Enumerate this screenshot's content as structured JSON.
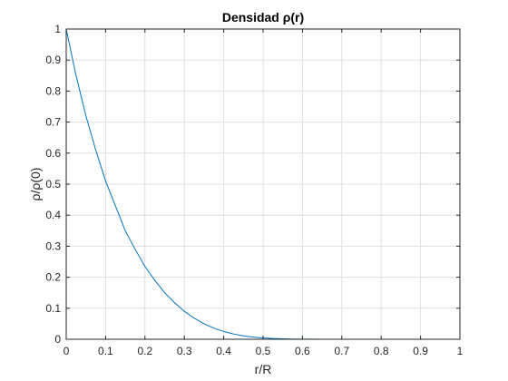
{
  "chart_data": {
    "type": "line",
    "title": "Densidad ρ(r)",
    "xlabel": "r/R",
    "ylabel": "ρ/ρ(0)",
    "xlim": [
      0,
      1
    ],
    "ylim": [
      0,
      1
    ],
    "grid": true,
    "x_ticks": [
      0,
      0.1,
      0.2,
      0.3,
      0.4,
      0.5,
      0.6,
      0.7,
      0.8,
      0.9,
      1
    ],
    "x_tick_labels": [
      "0",
      "0.1",
      "0.2",
      "0.3",
      "0.4",
      "0.5",
      "0.6",
      "0.7",
      "0.8",
      "0.9",
      "1"
    ],
    "y_ticks": [
      0,
      0.1,
      0.2,
      0.3,
      0.4,
      0.5,
      0.6,
      0.7,
      0.8,
      0.9,
      1
    ],
    "y_tick_labels": [
      "0",
      "0.1",
      "0.2",
      "0.3",
      "0.4",
      "0.5",
      "0.6",
      "0.7",
      "0.8",
      "0.9",
      "1"
    ],
    "series": [
      {
        "color": "#0072BD",
        "x": [
          0,
          0.025,
          0.05,
          0.075,
          0.1,
          0.125,
          0.15,
          0.175,
          0.2,
          0.225,
          0.25,
          0.275,
          0.3,
          0.325,
          0.35,
          0.375,
          0.4,
          0.425,
          0.45,
          0.475,
          0.5,
          0.525,
          0.55,
          0.575,
          0.6,
          0.625,
          0.65,
          0.7,
          0.75,
          0.8,
          0.85,
          0.9,
          0.95,
          1
        ],
        "y": [
          1,
          0.85,
          0.72,
          0.61,
          0.51,
          0.43,
          0.35,
          0.29,
          0.235,
          0.19,
          0.15,
          0.118,
          0.09,
          0.068,
          0.05,
          0.036,
          0.025,
          0.017,
          0.011,
          0.007,
          0.0045,
          0.0027,
          0.0016,
          0.0009,
          0.0005,
          0.0003,
          0.00015,
          5e-05,
          1e-05,
          0,
          0,
          0,
          0,
          0
        ]
      }
    ]
  }
}
